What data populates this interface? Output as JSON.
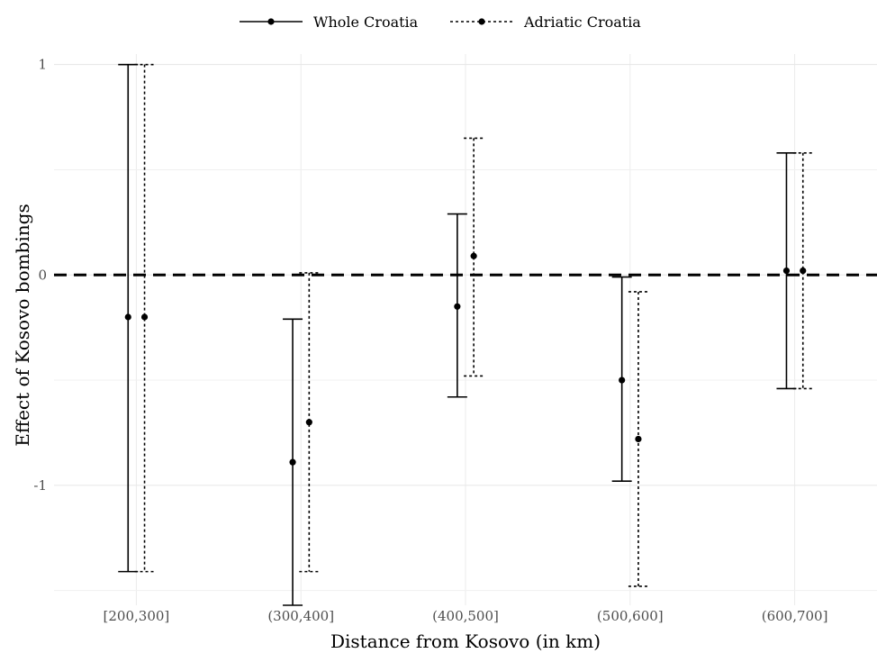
{
  "chart_data": {
    "type": "errorbar",
    "title": "",
    "xlabel": "Distance from Kosovo (in km)",
    "ylabel": "Effect of Kosovo bombings",
    "categories": [
      "[200,300]",
      "(300,400]",
      "(400,500]",
      "(500,600]",
      "(600,700]"
    ],
    "ylim": [
      -1.57,
      1.05
    ],
    "yticks": [
      1,
      0,
      -1
    ],
    "ytick_labels": [
      "1",
      "0",
      "-1"
    ],
    "grid": true,
    "reference_line": 0,
    "legend_position": "top",
    "series": [
      {
        "name": "Whole Croatia",
        "line_style": "solid",
        "estimate": [
          -0.2,
          -0.89,
          -0.15,
          -0.5,
          0.02
        ],
        "lower": [
          -1.41,
          -1.57,
          -0.58,
          -0.98,
          -0.54
        ],
        "upper": [
          1.0,
          -0.21,
          0.29,
          -0.01,
          0.58
        ]
      },
      {
        "name": "Adriatic Croatia",
        "line_style": "dotted",
        "estimate": [
          -0.2,
          -0.7,
          0.09,
          -0.78,
          0.02
        ],
        "lower": [
          -1.41,
          -1.41,
          -0.48,
          -1.48,
          -0.54
        ],
        "upper": [
          1.0,
          0.01,
          0.65,
          -0.08,
          0.58
        ]
      }
    ]
  }
}
